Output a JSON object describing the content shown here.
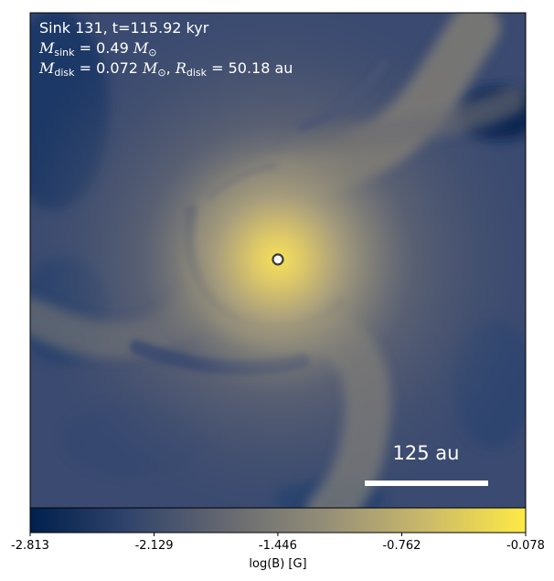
{
  "chart_data": {
    "type": "heatmap",
    "sink": {
      "title": "Sink 131, t=115.92 kyr",
      "m_sink_symbol": "M",
      "m_sink_sub": "sink",
      "m_sink_value": "= 0.49",
      "m_sink_unit": "M",
      "m_sink_unit_sub": "⊙",
      "m_disk_symbol": "M",
      "m_disk_sub": "disk",
      "m_disk_value": "= 0.072",
      "m_disk_unit": "M",
      "m_disk_unit_sub": "⊙",
      "separator": ",",
      "r_disk_symbol": "R",
      "r_disk_sub": "disk",
      "r_disk_value": "= 50.18 au"
    },
    "scale_bar": {
      "label": "125 au",
      "length_au": 125
    },
    "colorbar": {
      "label": "log(B) [G]",
      "min": -2.813,
      "max": -0.078,
      "ticks": [
        "-2.813",
        "-2.129",
        "-1.446",
        "-0.762",
        "-0.078"
      ],
      "tick_values": [
        -2.813,
        -2.129,
        -1.446,
        -0.762,
        -0.078
      ],
      "colormap": "cividis",
      "colormap_stops": [
        "#00204d",
        "#31446b",
        "#666970",
        "#958f78",
        "#cbba69",
        "#ffea46"
      ]
    },
    "field": {
      "description_values": "log(B) peaks at the central sink and decreases outward along a two-armed spiral",
      "center_log_b": -0.078,
      "background_log_b": -2.0
    }
  }
}
